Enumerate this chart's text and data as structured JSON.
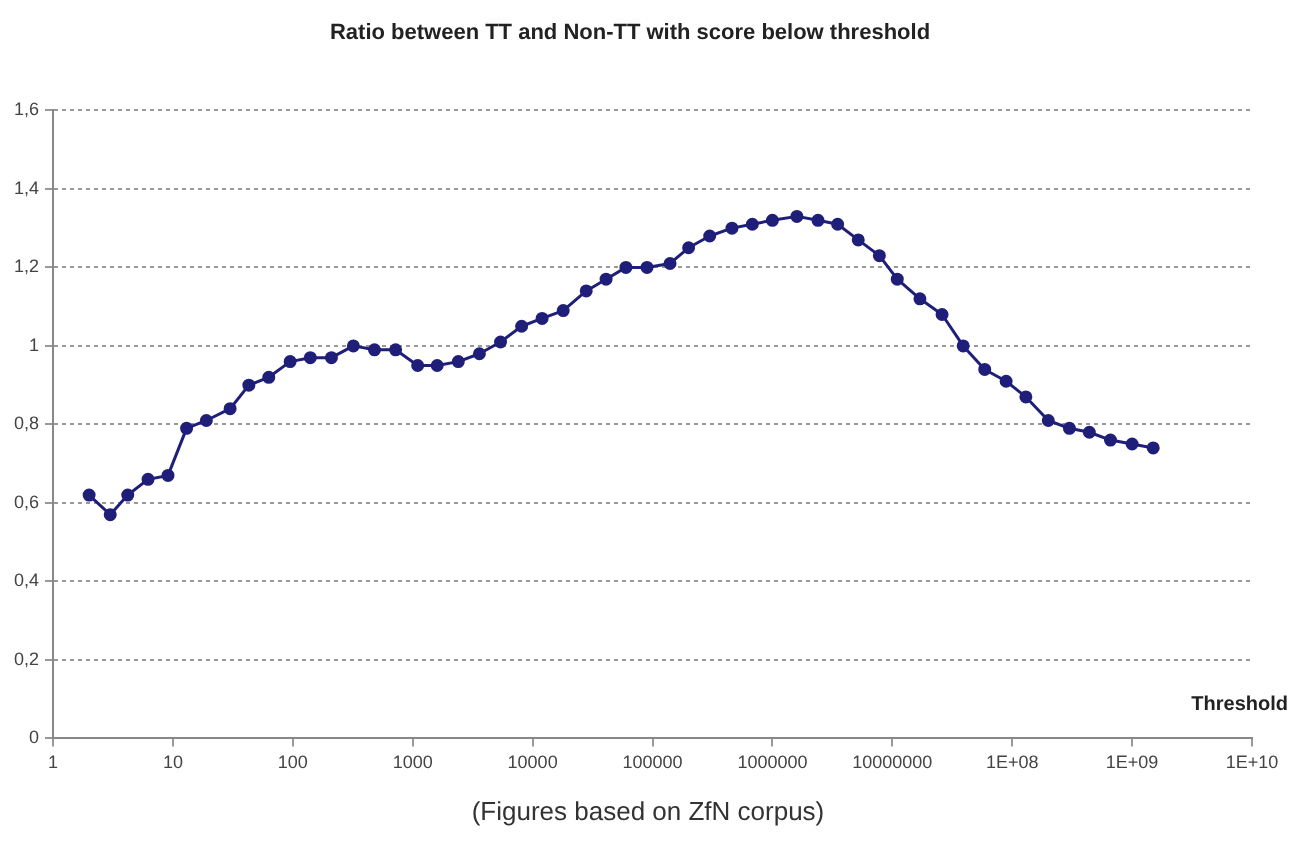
{
  "chart_data": {
    "type": "line",
    "title": "Ratio between TT and Non-TT with score below threshold",
    "xlabel": "Threshold",
    "annotations": [
      "(Figures based on ZfN corpus)"
    ],
    "log": "x",
    "grid": "y",
    "marker": "circle",
    "line_style": "solid",
    "xlim": [
      1,
      10000000000
    ],
    "xticks": [
      1,
      10,
      100,
      1000,
      10000,
      100000,
      1000000,
      10000000,
      {
        "value": 100000000,
        "label": "1E+08"
      },
      {
        "value": 1000000000,
        "label": "1E+09"
      },
      {
        "value": 10000000000,
        "label": "1E+10"
      }
    ],
    "ylim": [
      0,
      1.6
    ],
    "yticks": [
      0,
      {
        "value": 0.2,
        "label": "0,2"
      },
      {
        "value": 0.4,
        "label": "0,4"
      },
      {
        "value": 0.6,
        "label": "0,6"
      },
      {
        "value": 0.8,
        "label": "0,8"
      },
      1,
      {
        "value": 1.2,
        "label": "1,2"
      },
      {
        "value": 1.4,
        "label": "1,4"
      },
      {
        "value": 1.6,
        "label": "1,6"
      }
    ],
    "x": [
      2,
      3,
      4.2,
      6.2,
      9.1,
      13,
      19,
      30,
      43,
      63,
      95,
      140,
      210,
      320,
      480,
      720,
      1100,
      1600,
      2400,
      3600,
      5400,
      8100,
      12000,
      18000,
      28000,
      41000,
      60000,
      90000,
      140000,
      200000,
      300000,
      460000,
      680000,
      1000000,
      1600000,
      2400000,
      3500000,
      5200000,
      7800000,
      11000000,
      17000000,
      26000000,
      39000000,
      59000000,
      89000000,
      130000000,
      200000000,
      300000000,
      440000000,
      660000000,
      1000000000,
      1500000000
    ],
    "series": [
      {
        "color": "#1f1f7a",
        "values": [
          0.62,
          0.57,
          0.62,
          0.66,
          0.67,
          0.79,
          0.81,
          0.84,
          0.9,
          0.92,
          0.96,
          0.97,
          0.97,
          1.0,
          0.99,
          0.99,
          0.95,
          0.95,
          0.96,
          0.98,
          1.01,
          1.05,
          1.07,
          1.09,
          1.14,
          1.17,
          1.2,
          1.2,
          1.21,
          1.25,
          1.28,
          1.3,
          1.31,
          1.32,
          1.33,
          1.32,
          1.31,
          1.27,
          1.23,
          1.17,
          1.12,
          1.08,
          1.0,
          0.94,
          0.91,
          0.87,
          0.81,
          0.79,
          0.78,
          0.76,
          0.75,
          0.74
        ]
      }
    ]
  }
}
